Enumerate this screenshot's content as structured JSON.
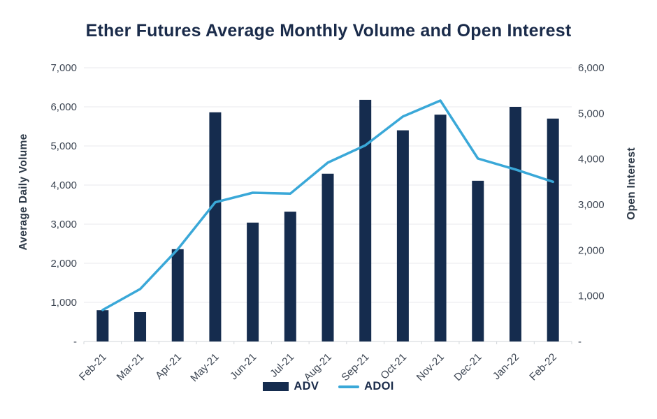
{
  "chart_data": {
    "type": "bar",
    "title": "Ether Futures Average Monthly Volume and Open Interest",
    "categories": [
      "Feb-21",
      "Mar-21",
      "Apr-21",
      "May-21",
      "Jun-21",
      "Jul-21",
      "Aug-21",
      "Sep-21",
      "Oct-21",
      "Nov-21",
      "Dec-21",
      "Jan-22",
      "Feb-22"
    ],
    "series": [
      {
        "name": "ADV",
        "type": "bar",
        "axis": "left",
        "values": [
          800,
          750,
          2360,
          5860,
          3040,
          3320,
          4290,
          6180,
          5400,
          5800,
          4110,
          6000,
          5700
        ]
      },
      {
        "name": "ADOI",
        "type": "line",
        "axis": "right",
        "values": [
          690,
          1150,
          2020,
          3050,
          3260,
          3240,
          3920,
          4300,
          4930,
          5280,
          4010,
          3770,
          3500
        ]
      }
    ],
    "left_axis": {
      "title": "Average Daily Volume",
      "min": 0,
      "max": 7000,
      "tick_step": 1000,
      "zero_label": "-"
    },
    "right_axis": {
      "title": "Open Interest",
      "min": 0,
      "max": 6000,
      "tick_step": 1000,
      "zero_label": "-"
    },
    "legend_position": "bottom",
    "grid": true,
    "colors": {
      "bar": "#152c4e",
      "line": "#3aa8d8",
      "title_text": "#1a2b4a",
      "tick_text": "#3d4653",
      "gridline": "#e8eaec",
      "axis_line": "#d2d6da"
    }
  }
}
